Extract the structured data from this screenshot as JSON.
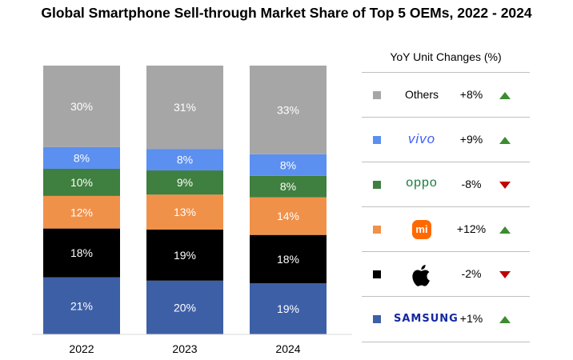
{
  "chart_data": {
    "type": "bar",
    "stacked": true,
    "title": "Global Smartphone Sell-through Market Share of Top 5 OEMs, 2022 - 2024",
    "categories": [
      "2022",
      "2023",
      "2024"
    ],
    "series": [
      {
        "name": "Samsung",
        "color": "#3d5fa6",
        "values": [
          21,
          20,
          19
        ],
        "labels": [
          "21%",
          "20%",
          "19%"
        ]
      },
      {
        "name": "Apple",
        "color": "#000000",
        "values": [
          18,
          19,
          18
        ],
        "labels": [
          "18%",
          "19%",
          "18%"
        ]
      },
      {
        "name": "Xiaomi",
        "color": "#f0914a",
        "values": [
          12,
          13,
          14
        ],
        "labels": [
          "12%",
          "13%",
          "14%"
        ]
      },
      {
        "name": "Oppo",
        "color": "#3f7f3f",
        "values": [
          10,
          9,
          8
        ],
        "labels": [
          "10%",
          "9%",
          "8%"
        ]
      },
      {
        "name": "Vivo",
        "color": "#5b8ff0",
        "values": [
          8,
          8,
          8
        ],
        "labels": [
          "8%",
          "8%",
          "8%"
        ]
      },
      {
        "name": "Others",
        "color": "#a6a6a6",
        "values": [
          30,
          31,
          33
        ],
        "labels": [
          "30%",
          "31%",
          "33%"
        ]
      }
    ],
    "legend_placement": "right",
    "grid": false
  },
  "legend": {
    "title": "YoY Unit Changes (%)",
    "rows": [
      {
        "brand": "Others",
        "logo": "text",
        "color": "#a6a6a6",
        "change": "+8%",
        "direction": "up"
      },
      {
        "brand": "vivo",
        "logo": "vivo",
        "color": "#5b8ff0",
        "change": "+9%",
        "direction": "up"
      },
      {
        "brand": "oppo",
        "logo": "oppo",
        "color": "#3f7f3f",
        "change": "-8%",
        "direction": "down"
      },
      {
        "brand": "mi",
        "logo": "mi",
        "color": "#f0914a",
        "change": "+12%",
        "direction": "up"
      },
      {
        "brand": "",
        "logo": "apple",
        "color": "#000000",
        "change": "-2%",
        "direction": "down"
      },
      {
        "brand": "SAMSUNG",
        "logo": "samsung",
        "color": "#3d5fa6",
        "change": "+1%",
        "direction": "up"
      }
    ]
  },
  "colors": {
    "up_arrow": "#3c8c2e",
    "down_arrow": "#c00000"
  }
}
